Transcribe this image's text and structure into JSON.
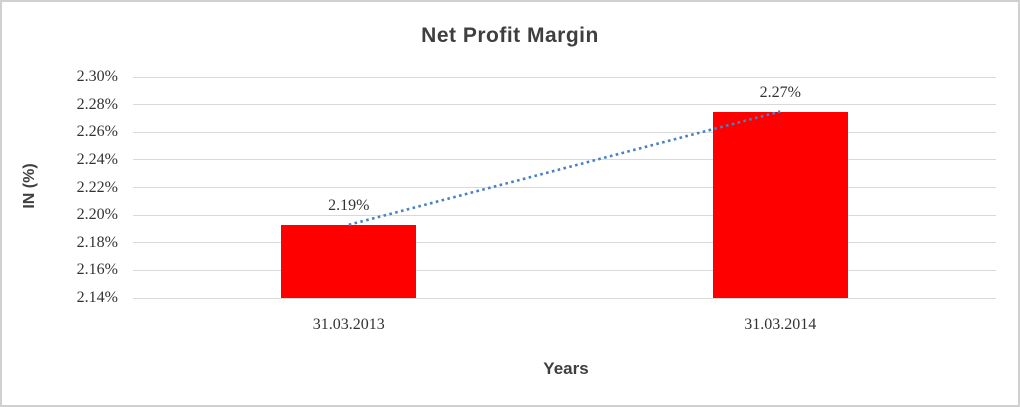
{
  "chart_data": {
    "type": "bar",
    "title": "Net Profit Margin",
    "xlabel": "Years",
    "ylabel": "IN (%)",
    "categories": [
      "31.03.2013",
      "31.03.2014"
    ],
    "values": [
      2.193,
      2.275
    ],
    "data_labels": [
      "2.19%",
      "2.27%"
    ],
    "ylim": [
      2.14,
      2.3
    ],
    "ytick_labels": [
      "2.30%",
      "2.28%",
      "2.26%",
      "2.24%",
      "2.22%",
      "2.20%",
      "2.18%",
      "2.16%",
      "2.14%"
    ],
    "grid": "horizontal",
    "legend": "none",
    "bar_color": "#ff0000",
    "gridline_color": "#d9d9d9",
    "text_color": "#333333",
    "title_color": "#3f3f3f",
    "border_color": "#d0d0d0",
    "trendline": {
      "type": "linear",
      "style": "dotted",
      "color": "#4a80c4",
      "connects_labels": [
        "2.19%",
        "2.27%"
      ],
      "connects_values": [
        2.193,
        2.275
      ]
    }
  }
}
